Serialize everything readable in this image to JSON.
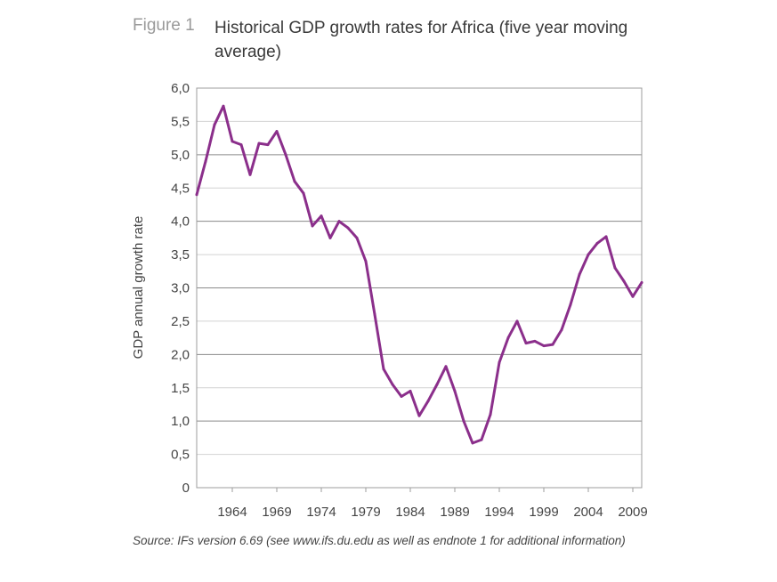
{
  "figure": {
    "label": "Figure 1",
    "title": "Historical GDP growth rates for Africa (five year moving average)",
    "source": "Source: IFs version 6.69 (see www.ifs.du.edu as well as endnote 1 for additional information)"
  },
  "chart_data": {
    "type": "line",
    "title": "Historical GDP growth rates for Africa (five year moving average)",
    "xlabel": "",
    "ylabel": "GDP annual growth rate",
    "xlim": [
      1960,
      2010
    ],
    "ylim": [
      0,
      6
    ],
    "grid": "horizontal",
    "legend": "none",
    "line_color": "#8b2f8b",
    "y_ticks": [
      "0",
      "0,5",
      "1,0",
      "1,5",
      "2,0",
      "2,5",
      "3,0",
      "3,5",
      "4,0",
      "4,5",
      "5,0",
      "5,5",
      "6,0"
    ],
    "x_ticks": [
      "1964",
      "1969",
      "1974",
      "1979",
      "1984",
      "1989",
      "1994",
      "1999",
      "2004",
      "2009"
    ],
    "series": [
      {
        "name": "",
        "x": [
          1960,
          1961,
          1962,
          1963,
          1964,
          1965,
          1966,
          1967,
          1968,
          1969,
          1970,
          1971,
          1972,
          1973,
          1974,
          1975,
          1976,
          1977,
          1978,
          1979,
          1980,
          1981,
          1982,
          1983,
          1984,
          1985,
          1986,
          1987,
          1988,
          1989,
          1990,
          1991,
          1992,
          1993,
          1994,
          1995,
          1996,
          1997,
          1998,
          1999,
          2000,
          2001,
          2002,
          2003,
          2004,
          2005,
          2006,
          2007,
          2008,
          2009,
          2010
        ],
        "values": [
          4.4,
          4.9,
          5.45,
          5.73,
          5.2,
          5.15,
          4.7,
          5.17,
          5.15,
          5.35,
          5.0,
          4.6,
          4.42,
          3.93,
          4.08,
          3.75,
          4.0,
          3.9,
          3.75,
          3.4,
          2.6,
          1.78,
          1.55,
          1.37,
          1.45,
          1.08,
          1.3,
          1.55,
          1.82,
          1.45,
          1.0,
          0.67,
          0.72,
          1.1,
          1.88,
          2.25,
          2.5,
          2.17,
          2.2,
          2.13,
          2.15,
          2.37,
          2.75,
          3.2,
          3.5,
          3.67,
          3.77,
          3.3,
          3.1,
          2.87,
          3.08
        ]
      }
    ]
  }
}
